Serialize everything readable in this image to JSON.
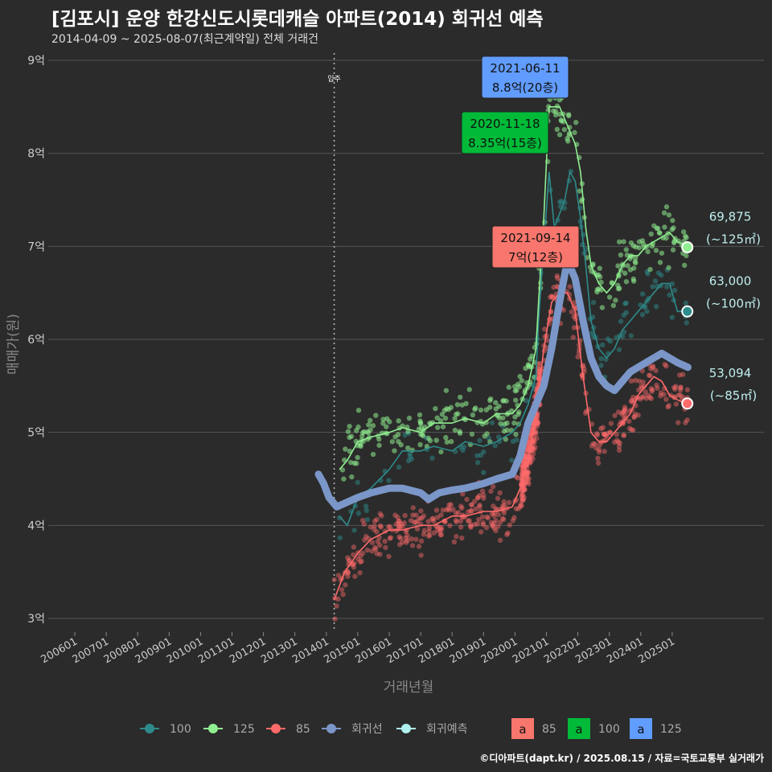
{
  "title": "[김포시] 운양 한강신도시롯데캐슬 아파트(2014) 회귀선 예측",
  "subtitle": "2014-04-09 ~ 2025-08-07(최근계약일) 전체 거래건",
  "footer": "©디아파트(dapt.kr) / 2025.08.15 / 자료=국토교통부 실거래가",
  "colors": {
    "background": "#2b2b2b",
    "grid": "#555555",
    "s100": "#2e8b8b",
    "s125": "#90ee90",
    "s85": "#ff6b6b",
    "regression": "#7b96c8",
    "forecast": "#b0f0f0",
    "box85": "#f8766d",
    "box100": "#00ba38",
    "box125": "#619cff"
  },
  "chart_data": {
    "type": "scatter",
    "title": "[김포시] 운양 한강신도시롯데캐슬 아파트(2014) 회귀선 예측",
    "subtitle": "2014-04-09 ~ 2025-08-07(최근계약일) 전체 거래건",
    "xlabel": "거래년월",
    "ylabel": "매매가(원)",
    "x_ticks": [
      "200601",
      "200701",
      "200801",
      "200901",
      "201001",
      "201101",
      "201201",
      "201301",
      "201401",
      "201501",
      "201601",
      "201701",
      "201801",
      "201901",
      "202001",
      "202101",
      "202201",
      "202301",
      "202401",
      "202501"
    ],
    "y_ticks": [
      "3억",
      "4억",
      "5억",
      "6억",
      "7억",
      "8억",
      "9억"
    ],
    "ylim": [
      3,
      9
    ],
    "y_unit": "억",
    "xlim": [
      "2005-07",
      "2026-03"
    ],
    "grid": true,
    "legend_position": "bottom",
    "move_in": {
      "date": "2014-04",
      "label": "입주"
    },
    "series": [
      {
        "name": "100",
        "type": "line",
        "points": [
          [
            "2014-06",
            4.1
          ],
          [
            "2014-09",
            4.0
          ],
          [
            "2015-01",
            4.3
          ],
          [
            "2015-06",
            4.4
          ],
          [
            "2016-01",
            4.6
          ],
          [
            "2016-06",
            4.8
          ],
          [
            "2017-01",
            4.8
          ],
          [
            "2017-06",
            4.85
          ],
          [
            "2018-01",
            4.8
          ],
          [
            "2018-06",
            4.9
          ],
          [
            "2019-01",
            4.85
          ],
          [
            "2019-06",
            4.9
          ],
          [
            "2019-12",
            5.0
          ],
          [
            "2020-03",
            5.1
          ],
          [
            "2020-06",
            5.3
          ],
          [
            "2020-09",
            5.6
          ],
          [
            "2020-10",
            6.2
          ],
          [
            "2020-12",
            7.0
          ],
          [
            "2021-02",
            7.8
          ],
          [
            "2021-04",
            7.2
          ],
          [
            "2021-08",
            7.5
          ],
          [
            "2021-10",
            7.8
          ],
          [
            "2021-12",
            7.7
          ],
          [
            "2022-02",
            7.3
          ],
          [
            "2022-04",
            6.8
          ],
          [
            "2022-06",
            6.2
          ],
          [
            "2022-09",
            5.9
          ],
          [
            "2022-12",
            5.8
          ],
          [
            "2023-03",
            5.9
          ],
          [
            "2023-06",
            6.1
          ],
          [
            "2023-09",
            6.2
          ],
          [
            "2023-12",
            6.3
          ],
          [
            "2024-03",
            6.4
          ],
          [
            "2024-06",
            6.5
          ],
          [
            "2024-09",
            6.6
          ],
          [
            "2024-12",
            6.6
          ],
          [
            "2025-03",
            6.3
          ],
          [
            "2025-07",
            6.3
          ]
        ]
      },
      {
        "name": "125",
        "type": "line",
        "points": [
          [
            "2014-06",
            4.6
          ],
          [
            "2014-09",
            4.7
          ],
          [
            "2015-01",
            4.9
          ],
          [
            "2015-06",
            4.95
          ],
          [
            "2016-01",
            5.0
          ],
          [
            "2016-06",
            5.05
          ],
          [
            "2017-01",
            5.0
          ],
          [
            "2017-06",
            5.1
          ],
          [
            "2018-01",
            5.1
          ],
          [
            "2018-06",
            5.15
          ],
          [
            "2019-01",
            5.1
          ],
          [
            "2019-06",
            5.2
          ],
          [
            "2019-12",
            5.2
          ],
          [
            "2020-03",
            5.3
          ],
          [
            "2020-06",
            5.5
          ],
          [
            "2020-09",
            5.9
          ],
          [
            "2020-10",
            6.4
          ],
          [
            "2020-12",
            7.3
          ],
          [
            "2021-02",
            8.5
          ],
          [
            "2021-06",
            8.5
          ],
          [
            "2021-09",
            8.3
          ],
          [
            "2021-12",
            8.1
          ],
          [
            "2022-02",
            7.8
          ],
          [
            "2022-04",
            7.2
          ],
          [
            "2022-06",
            6.8
          ],
          [
            "2022-09",
            6.6
          ],
          [
            "2022-12",
            6.5
          ],
          [
            "2023-03",
            6.6
          ],
          [
            "2023-06",
            6.8
          ],
          [
            "2023-09",
            6.9
          ],
          [
            "2023-12",
            6.9
          ],
          [
            "2024-03",
            7.0
          ],
          [
            "2024-06",
            7.05
          ],
          [
            "2024-09",
            7.1
          ],
          [
            "2024-12",
            7.15
          ],
          [
            "2025-03",
            7.05
          ],
          [
            "2025-07",
            7.0
          ]
        ]
      },
      {
        "name": "85",
        "type": "line",
        "points": [
          [
            "2014-04",
            3.2
          ],
          [
            "2014-08",
            3.5
          ],
          [
            "2015-01",
            3.7
          ],
          [
            "2015-06",
            3.85
          ],
          [
            "2016-01",
            3.95
          ],
          [
            "2016-06",
            3.95
          ],
          [
            "2017-01",
            4.0
          ],
          [
            "2017-06",
            4.0
          ],
          [
            "2018-01",
            4.1
          ],
          [
            "2018-06",
            4.1
          ],
          [
            "2019-01",
            4.15
          ],
          [
            "2019-06",
            4.15
          ],
          [
            "2019-12",
            4.2
          ],
          [
            "2020-03",
            4.4
          ],
          [
            "2020-06",
            4.7
          ],
          [
            "2020-09",
            5.2
          ],
          [
            "2020-12",
            5.9
          ],
          [
            "2021-03",
            6.4
          ],
          [
            "2021-06",
            6.5
          ],
          [
            "2021-09",
            6.5
          ],
          [
            "2021-12",
            6.3
          ],
          [
            "2022-03",
            5.6
          ],
          [
            "2022-06",
            5.0
          ],
          [
            "2022-09",
            4.9
          ],
          [
            "2022-12",
            4.9
          ],
          [
            "2023-03",
            5.0
          ],
          [
            "2023-06",
            5.1
          ],
          [
            "2023-09",
            5.2
          ],
          [
            "2023-12",
            5.4
          ],
          [
            "2024-03",
            5.5
          ],
          [
            "2024-06",
            5.6
          ],
          [
            "2024-09",
            5.55
          ],
          [
            "2024-12",
            5.4
          ],
          [
            "2025-03",
            5.35
          ],
          [
            "2025-07",
            5.3
          ]
        ]
      },
      {
        "name": "회귀선",
        "type": "regression",
        "points": [
          [
            "2013-10",
            4.55
          ],
          [
            "2013-12",
            4.45
          ],
          [
            "2014-02",
            4.3
          ],
          [
            "2014-05",
            4.2
          ],
          [
            "2014-09",
            4.25
          ],
          [
            "2015-01",
            4.3
          ],
          [
            "2015-06",
            4.35
          ],
          [
            "2016-01",
            4.4
          ],
          [
            "2016-06",
            4.4
          ],
          [
            "2017-01",
            4.35
          ],
          [
            "2017-04",
            4.28
          ],
          [
            "2017-08",
            4.35
          ],
          [
            "2018-01",
            4.38
          ],
          [
            "2018-06",
            4.4
          ],
          [
            "2019-01",
            4.45
          ],
          [
            "2019-06",
            4.5
          ],
          [
            "2019-12",
            4.55
          ],
          [
            "2020-03",
            4.75
          ],
          [
            "2020-06",
            5.1
          ],
          [
            "2020-09",
            5.3
          ],
          [
            "2020-12",
            5.5
          ],
          [
            "2021-03",
            5.9
          ],
          [
            "2021-06",
            6.4
          ],
          [
            "2021-09",
            6.85
          ],
          [
            "2021-12",
            6.65
          ],
          [
            "2022-03",
            6.2
          ],
          [
            "2022-06",
            5.8
          ],
          [
            "2022-09",
            5.6
          ],
          [
            "2022-12",
            5.5
          ],
          [
            "2023-03",
            5.45
          ],
          [
            "2023-06",
            5.55
          ],
          [
            "2023-09",
            5.65
          ],
          [
            "2023-12",
            5.7
          ],
          [
            "2024-03",
            5.75
          ],
          [
            "2024-06",
            5.8
          ],
          [
            "2024-09",
            5.85
          ],
          [
            "2024-12",
            5.8
          ],
          [
            "2025-03",
            5.75
          ],
          [
            "2025-07",
            5.7
          ]
        ]
      },
      {
        "name": "회귀예측",
        "type": "forecast",
        "points": [
          [
            "2025-08",
            6.99,
            "125"
          ],
          [
            "2025-08",
            6.3,
            "100"
          ],
          [
            "2025-08",
            5.31,
            "85"
          ]
        ]
      }
    ],
    "annotations": [
      {
        "series": "125",
        "date_text": "2021-06-11",
        "value_text": "8.8억(20층)",
        "x": "2021-06",
        "y": 8.8
      },
      {
        "series": "100",
        "date_text": "2020-11-18",
        "value_text": "8.35억(15층)",
        "x": "2020-11",
        "y": 8.35
      },
      {
        "series": "85",
        "date_text": "2021-09-14",
        "value_text": "7억(12층)",
        "x": "2021-09",
        "y": 7.0
      }
    ],
    "end_labels": [
      {
        "series": "125",
        "value_text": "69,875",
        "area_text": "(~125㎡)",
        "y": 6.99
      },
      {
        "series": "100",
        "value_text": "63,000",
        "area_text": "(~100㎡)",
        "y": 6.3
      },
      {
        "series": "85",
        "value_text": "53,094",
        "area_text": "(~85㎡)",
        "y": 5.31
      }
    ],
    "legend": {
      "series": [
        "100",
        "125",
        "85",
        "회귀선",
        "회귀예측"
      ],
      "boxes": [
        {
          "label": "85",
          "color_key": "box85"
        },
        {
          "label": "100",
          "color_key": "box100"
        },
        {
          "label": "125",
          "color_key": "box125"
        }
      ],
      "box_letter": "a"
    }
  }
}
